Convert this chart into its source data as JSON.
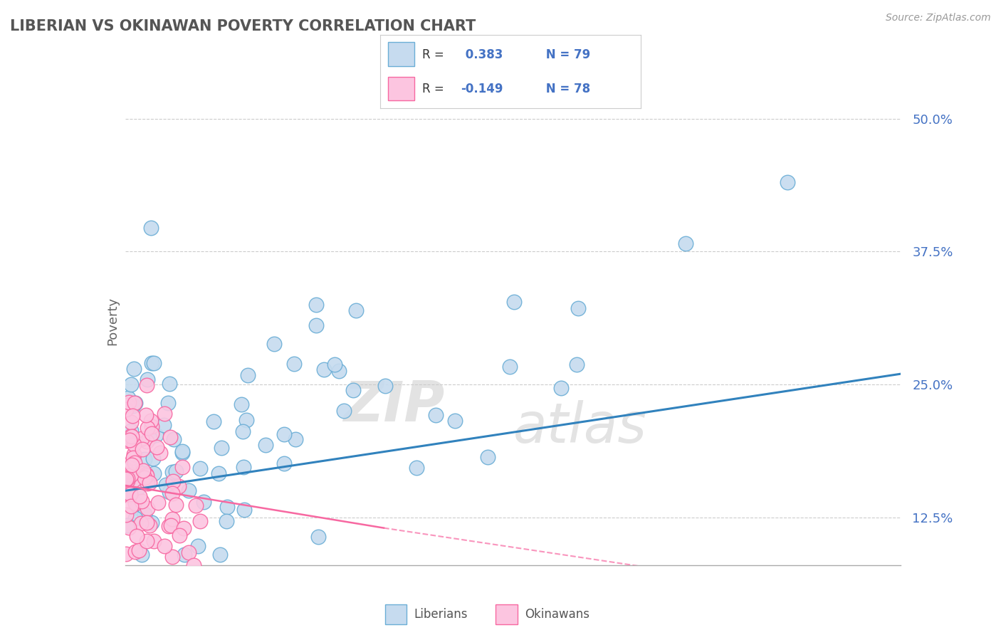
{
  "title": "LIBERIAN VS OKINAWAN POVERTY CORRELATION CHART",
  "source": "Source: ZipAtlas.com",
  "ylabel": "Poverty",
  "xlim": [
    0.0,
    15.0
  ],
  "ylim": [
    8.0,
    54.0
  ],
  "yticks": [
    12.5,
    25.0,
    37.5,
    50.0
  ],
  "ytick_labels": [
    "12.5%",
    "25.0%",
    "37.5%",
    "50.0%"
  ],
  "blue_R": 0.383,
  "blue_N": 79,
  "pink_R": -0.149,
  "pink_N": 78,
  "blue_marker_face": "#c6dbef",
  "blue_marker_edge": "#6baed6",
  "pink_marker_face": "#fcc5e0",
  "pink_marker_edge": "#f768a1",
  "blue_line_color": "#3182bd",
  "pink_line_color": "#f768a1",
  "background_color": "#ffffff",
  "grid_color": "#cccccc",
  "title_color": "#555555",
  "source_color": "#999999",
  "axis_color": "#aaaaaa",
  "label_color": "#4472c4",
  "text_dark": "#333333",
  "blue_line_x0": 0.0,
  "blue_line_y0": 15.0,
  "blue_line_x1": 15.0,
  "blue_line_y1": 26.0,
  "pink_solid_x0": 0.0,
  "pink_solid_y0": 15.5,
  "pink_solid_x1": 5.0,
  "pink_solid_y1": 11.5,
  "pink_dash_x0": 5.0,
  "pink_dash_y0": 11.5,
  "pink_dash_x1": 10.5,
  "pink_dash_y1": 7.5
}
